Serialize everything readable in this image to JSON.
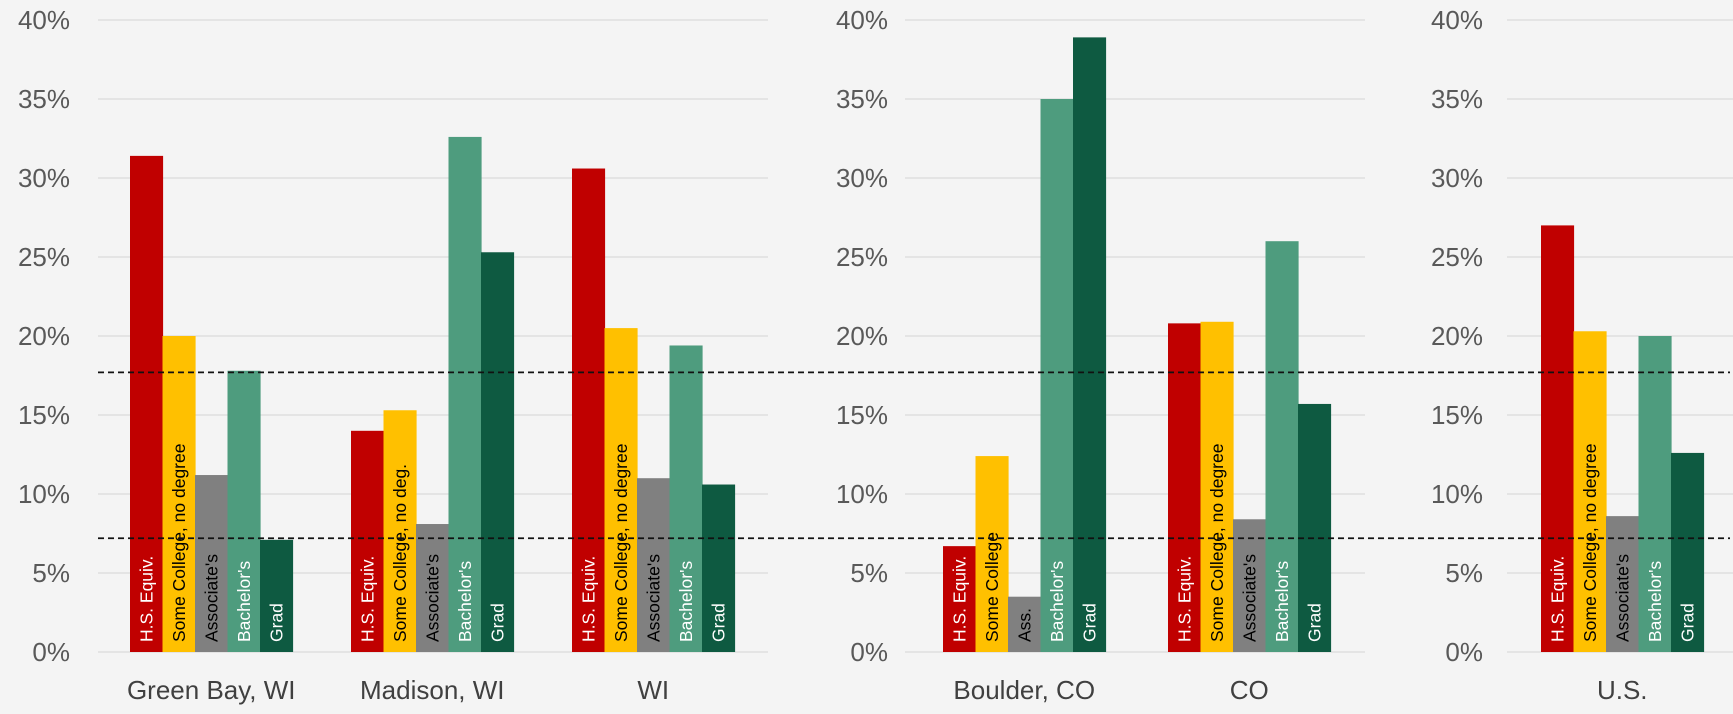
{
  "chart_data": [
    {
      "type": "bar",
      "categories": [
        "Green Bay, WI",
        "Madison, WI",
        "WI"
      ],
      "series_labels": [
        [
          "H.S. Equiv.",
          "Some College, no degree",
          "Associate's",
          "Bachelor's",
          "Grad"
        ],
        [
          "H.S. Equiv.",
          "Some College, no deg.",
          "Associate's",
          "Bachelor's",
          "Grad"
        ],
        [
          "H.S. Equiv.",
          "Some College, no degree",
          "Associate's",
          "Bachelor's",
          "Grad"
        ]
      ],
      "values": [
        [
          31.4,
          20.0,
          11.2,
          17.8,
          7.1
        ],
        [
          14.0,
          15.3,
          8.1,
          32.6,
          25.3
        ],
        [
          30.6,
          20.5,
          11.0,
          19.4,
          10.6
        ]
      ],
      "yticks": [
        "0%",
        "5%",
        "10%",
        "15%",
        "20%",
        "25%",
        "30%",
        "35%",
        "40%"
      ],
      "ylim": [
        0,
        40
      ]
    },
    {
      "type": "bar",
      "categories": [
        "Boulder, CO",
        "CO"
      ],
      "series_labels": [
        [
          "H.S. Equiv.",
          "Some College",
          "Ass.",
          "Bachelor's",
          "Grad"
        ],
        [
          "H.S. Equiv.",
          "Some College, no degree",
          "Associate's",
          "Bachelor's",
          "Grad"
        ]
      ],
      "values": [
        [
          6.7,
          12.4,
          3.5,
          35.0,
          38.9
        ],
        [
          20.8,
          20.9,
          8.4,
          26.0,
          15.7
        ]
      ],
      "yticks": [
        "0%",
        "5%",
        "10%",
        "15%",
        "20%",
        "25%",
        "30%",
        "35%",
        "40%"
      ],
      "ylim": [
        0,
        40
      ]
    },
    {
      "type": "bar",
      "categories": [
        "U.S."
      ],
      "series_labels": [
        [
          "H.S. Equiv.",
          "Some College, no degree",
          "Associate's",
          "Bachelor's",
          "Grad"
        ]
      ],
      "values": [
        [
          27.0,
          20.3,
          8.6,
          20.0,
          12.6
        ]
      ],
      "yticks": [
        "0%",
        "5%",
        "10%",
        "15%",
        "20%",
        "25%",
        "30%",
        "35%",
        "40%"
      ],
      "ylim": [
        0,
        40
      ]
    }
  ],
  "reference_lines": [
    17.7,
    7.2
  ],
  "colors": {
    "series": [
      "#c00000",
      "#ffc000",
      "#808080",
      "#4e9c7e",
      "#0e5a41"
    ],
    "grid": "#d9d9d9",
    "tick_text": "#595959",
    "category_text": "#404040",
    "reference_line": "#111111",
    "bar_label_dark": "#000000",
    "bar_label_light": "#ffffff"
  }
}
